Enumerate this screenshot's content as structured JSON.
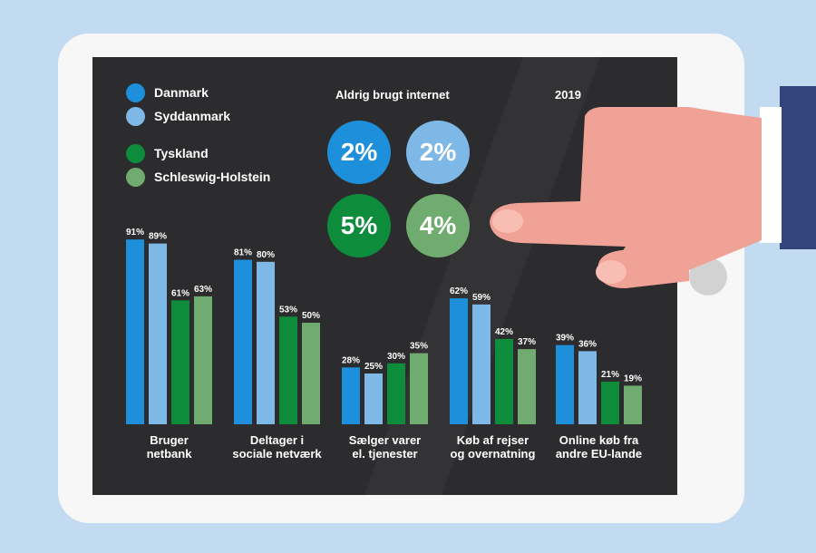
{
  "colors": {
    "danmark": "#1e8fda",
    "syddanmark": "#7db8e6",
    "tyskland": "#0d8d3c",
    "schleswig_holstein": "#70ab6f",
    "screen_bg": "#2c2b2d",
    "page_bg": "#c3dbf1"
  },
  "legend": [
    {
      "label": "Danmark",
      "color": "#1e8fda"
    },
    {
      "label": "Syddanmark",
      "color": "#7db8e6"
    },
    {
      "label": "Tyskland",
      "color": "#0d8d3c"
    },
    {
      "label": "Schleswig-Holstein",
      "color": "#70ab6f"
    }
  ],
  "never_used": {
    "title": "Aldrig brugt internet",
    "values": [
      "2%",
      "2%",
      "5%",
      "4%"
    ]
  },
  "year": "2019",
  "chart_data": {
    "type": "bar",
    "categories": [
      [
        "Bruger",
        "netbank"
      ],
      [
        "Deltager i",
        "sociale netværk"
      ],
      [
        "Sælger varer",
        "el. tjenester"
      ],
      [
        "Køb af rejser",
        "og overnatning"
      ],
      [
        "Online køb fra",
        "andre EU-lande"
      ]
    ],
    "series": [
      {
        "name": "Danmark",
        "values": [
          91,
          81,
          28,
          62,
          39
        ],
        "color": "#1e8fda"
      },
      {
        "name": "Syddanmark",
        "values": [
          89,
          80,
          25,
          59,
          36
        ],
        "color": "#7db8e6"
      },
      {
        "name": "Tyskland",
        "values": [
          61,
          53,
          30,
          42,
          21
        ],
        "color": "#0d8d3c"
      },
      {
        "name": "Schleswig-Holstein",
        "values": [
          63,
          50,
          35,
          37,
          19
        ],
        "color": "#70ab6f"
      }
    ],
    "value_suffix": "%",
    "ylim": [
      0,
      100
    ],
    "title": "",
    "xlabel": "",
    "ylabel": "",
    "grid": false,
    "legend_position": "top-left"
  }
}
